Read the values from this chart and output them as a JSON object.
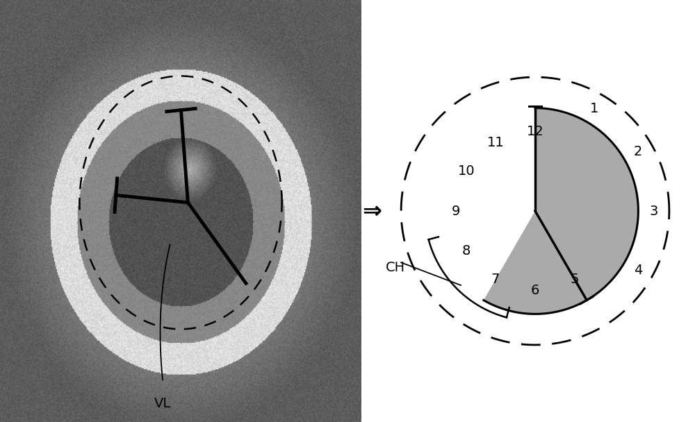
{
  "fig_width": 10.0,
  "fig_height": 6.08,
  "dpi": 100,
  "bg_color": "#ffffff",
  "clock_gray_color": "#aaaaaa",
  "clock_line_color": "#000000",
  "ch_label": "CH",
  "vl_label": "VL",
  "arrow_symbol": "⇒",
  "eye_bg_color": "#888888",
  "eye_inner_color": "#555555",
  "eye_pupil_color": "#333333",
  "eye_outer_color": "#999999"
}
